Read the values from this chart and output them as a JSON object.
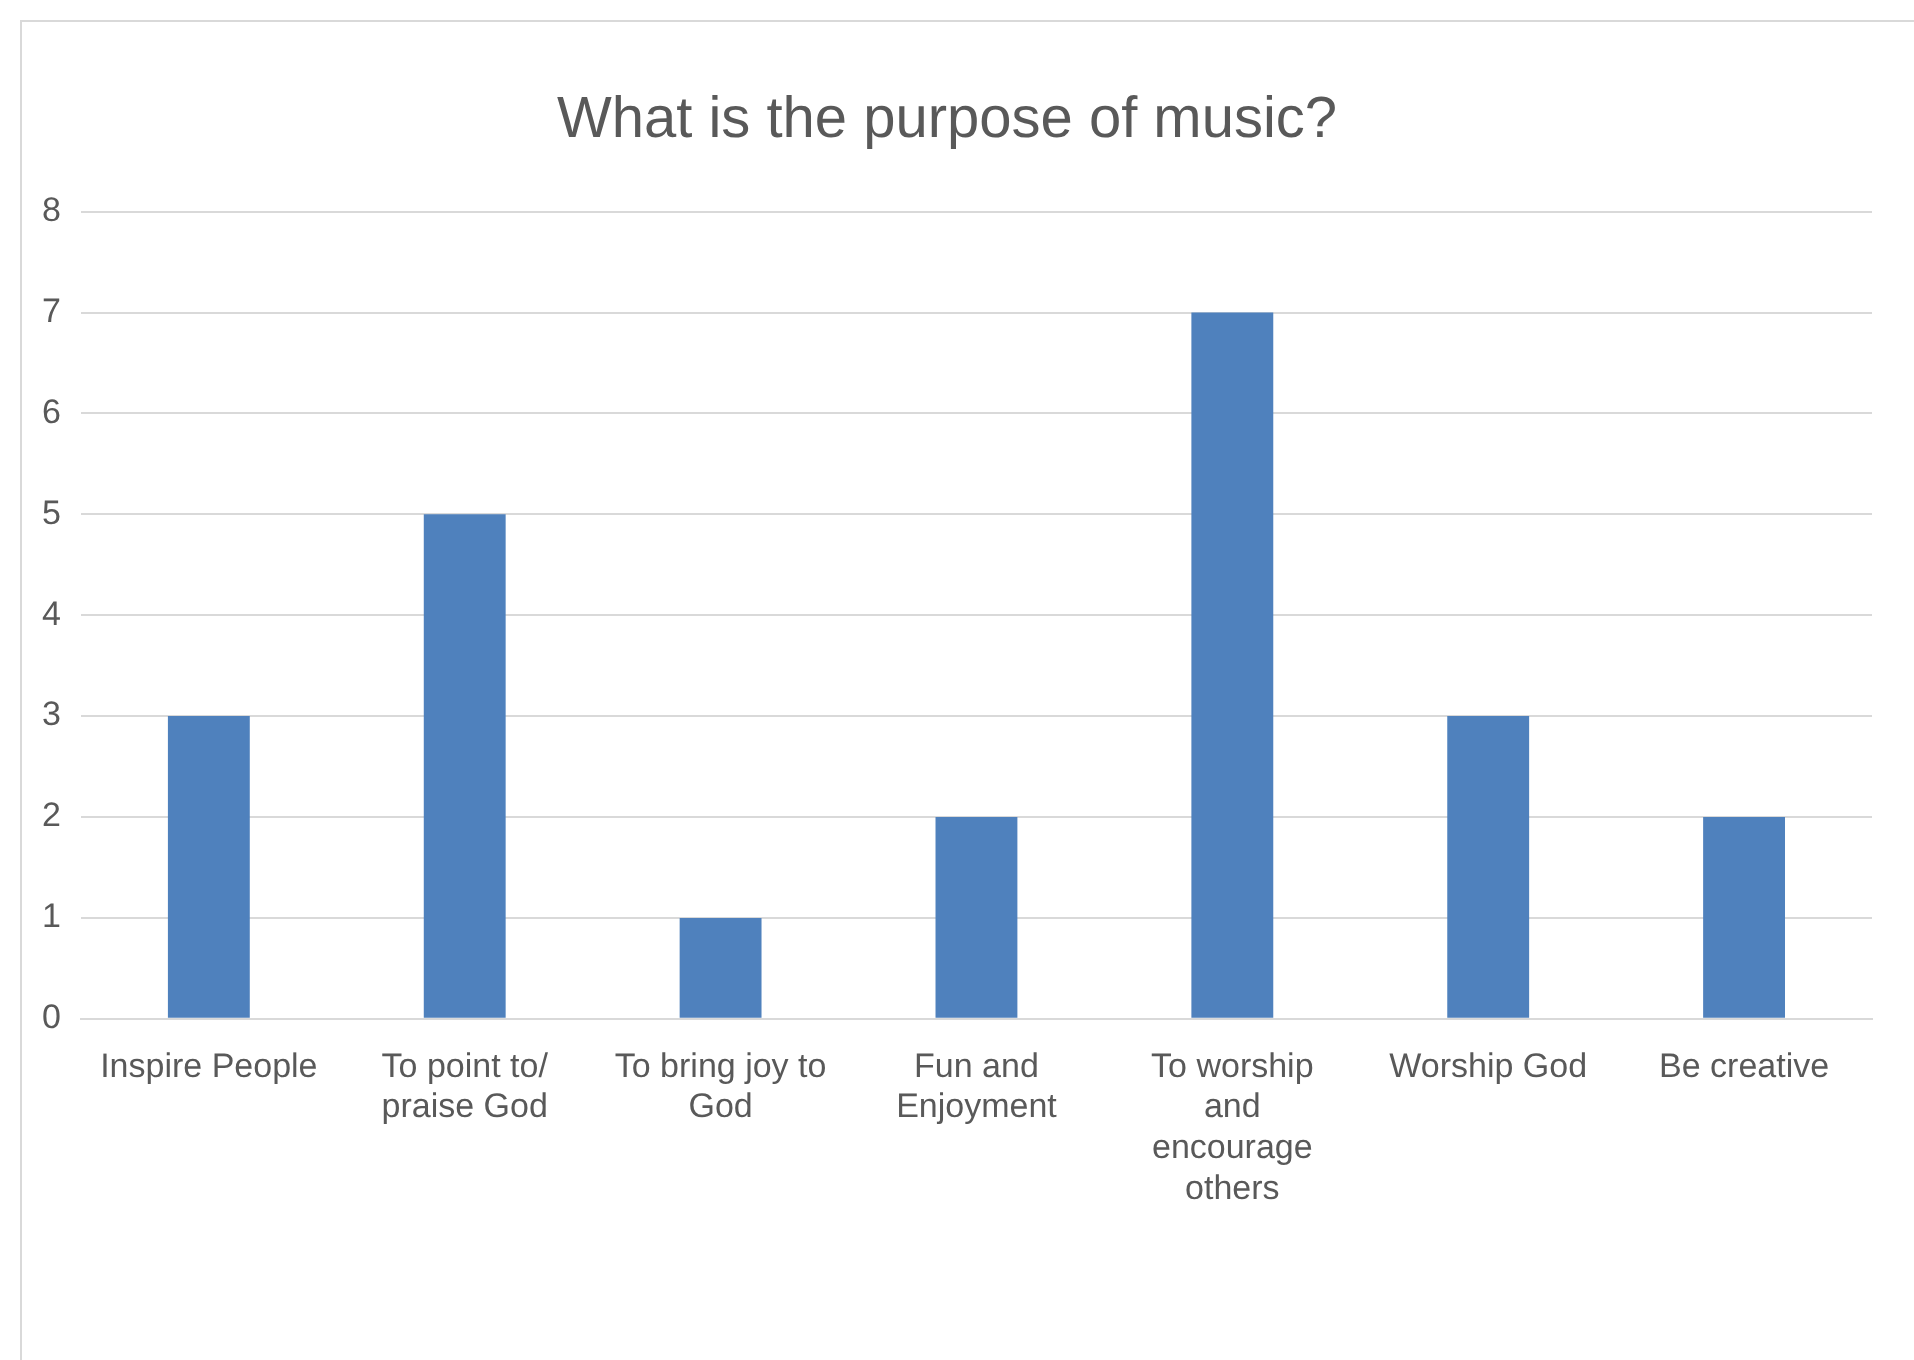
{
  "chart_data": {
    "type": "bar",
    "title": "What is the purpose of music?",
    "categories": [
      "Inspire People",
      "To point to/ praise God",
      "To bring joy to God",
      "Fun and Enjoyment",
      "To worship and encourage others",
      "Worship God",
      "Be creative"
    ],
    "values": [
      3,
      5,
      1,
      2,
      7,
      3,
      2
    ],
    "color": "#4f81bd",
    "ylim": [
      0,
      8
    ],
    "yticks": [
      0,
      1,
      2,
      3,
      4,
      5,
      6,
      7,
      8
    ],
    "grid": "y",
    "legend": false
  }
}
